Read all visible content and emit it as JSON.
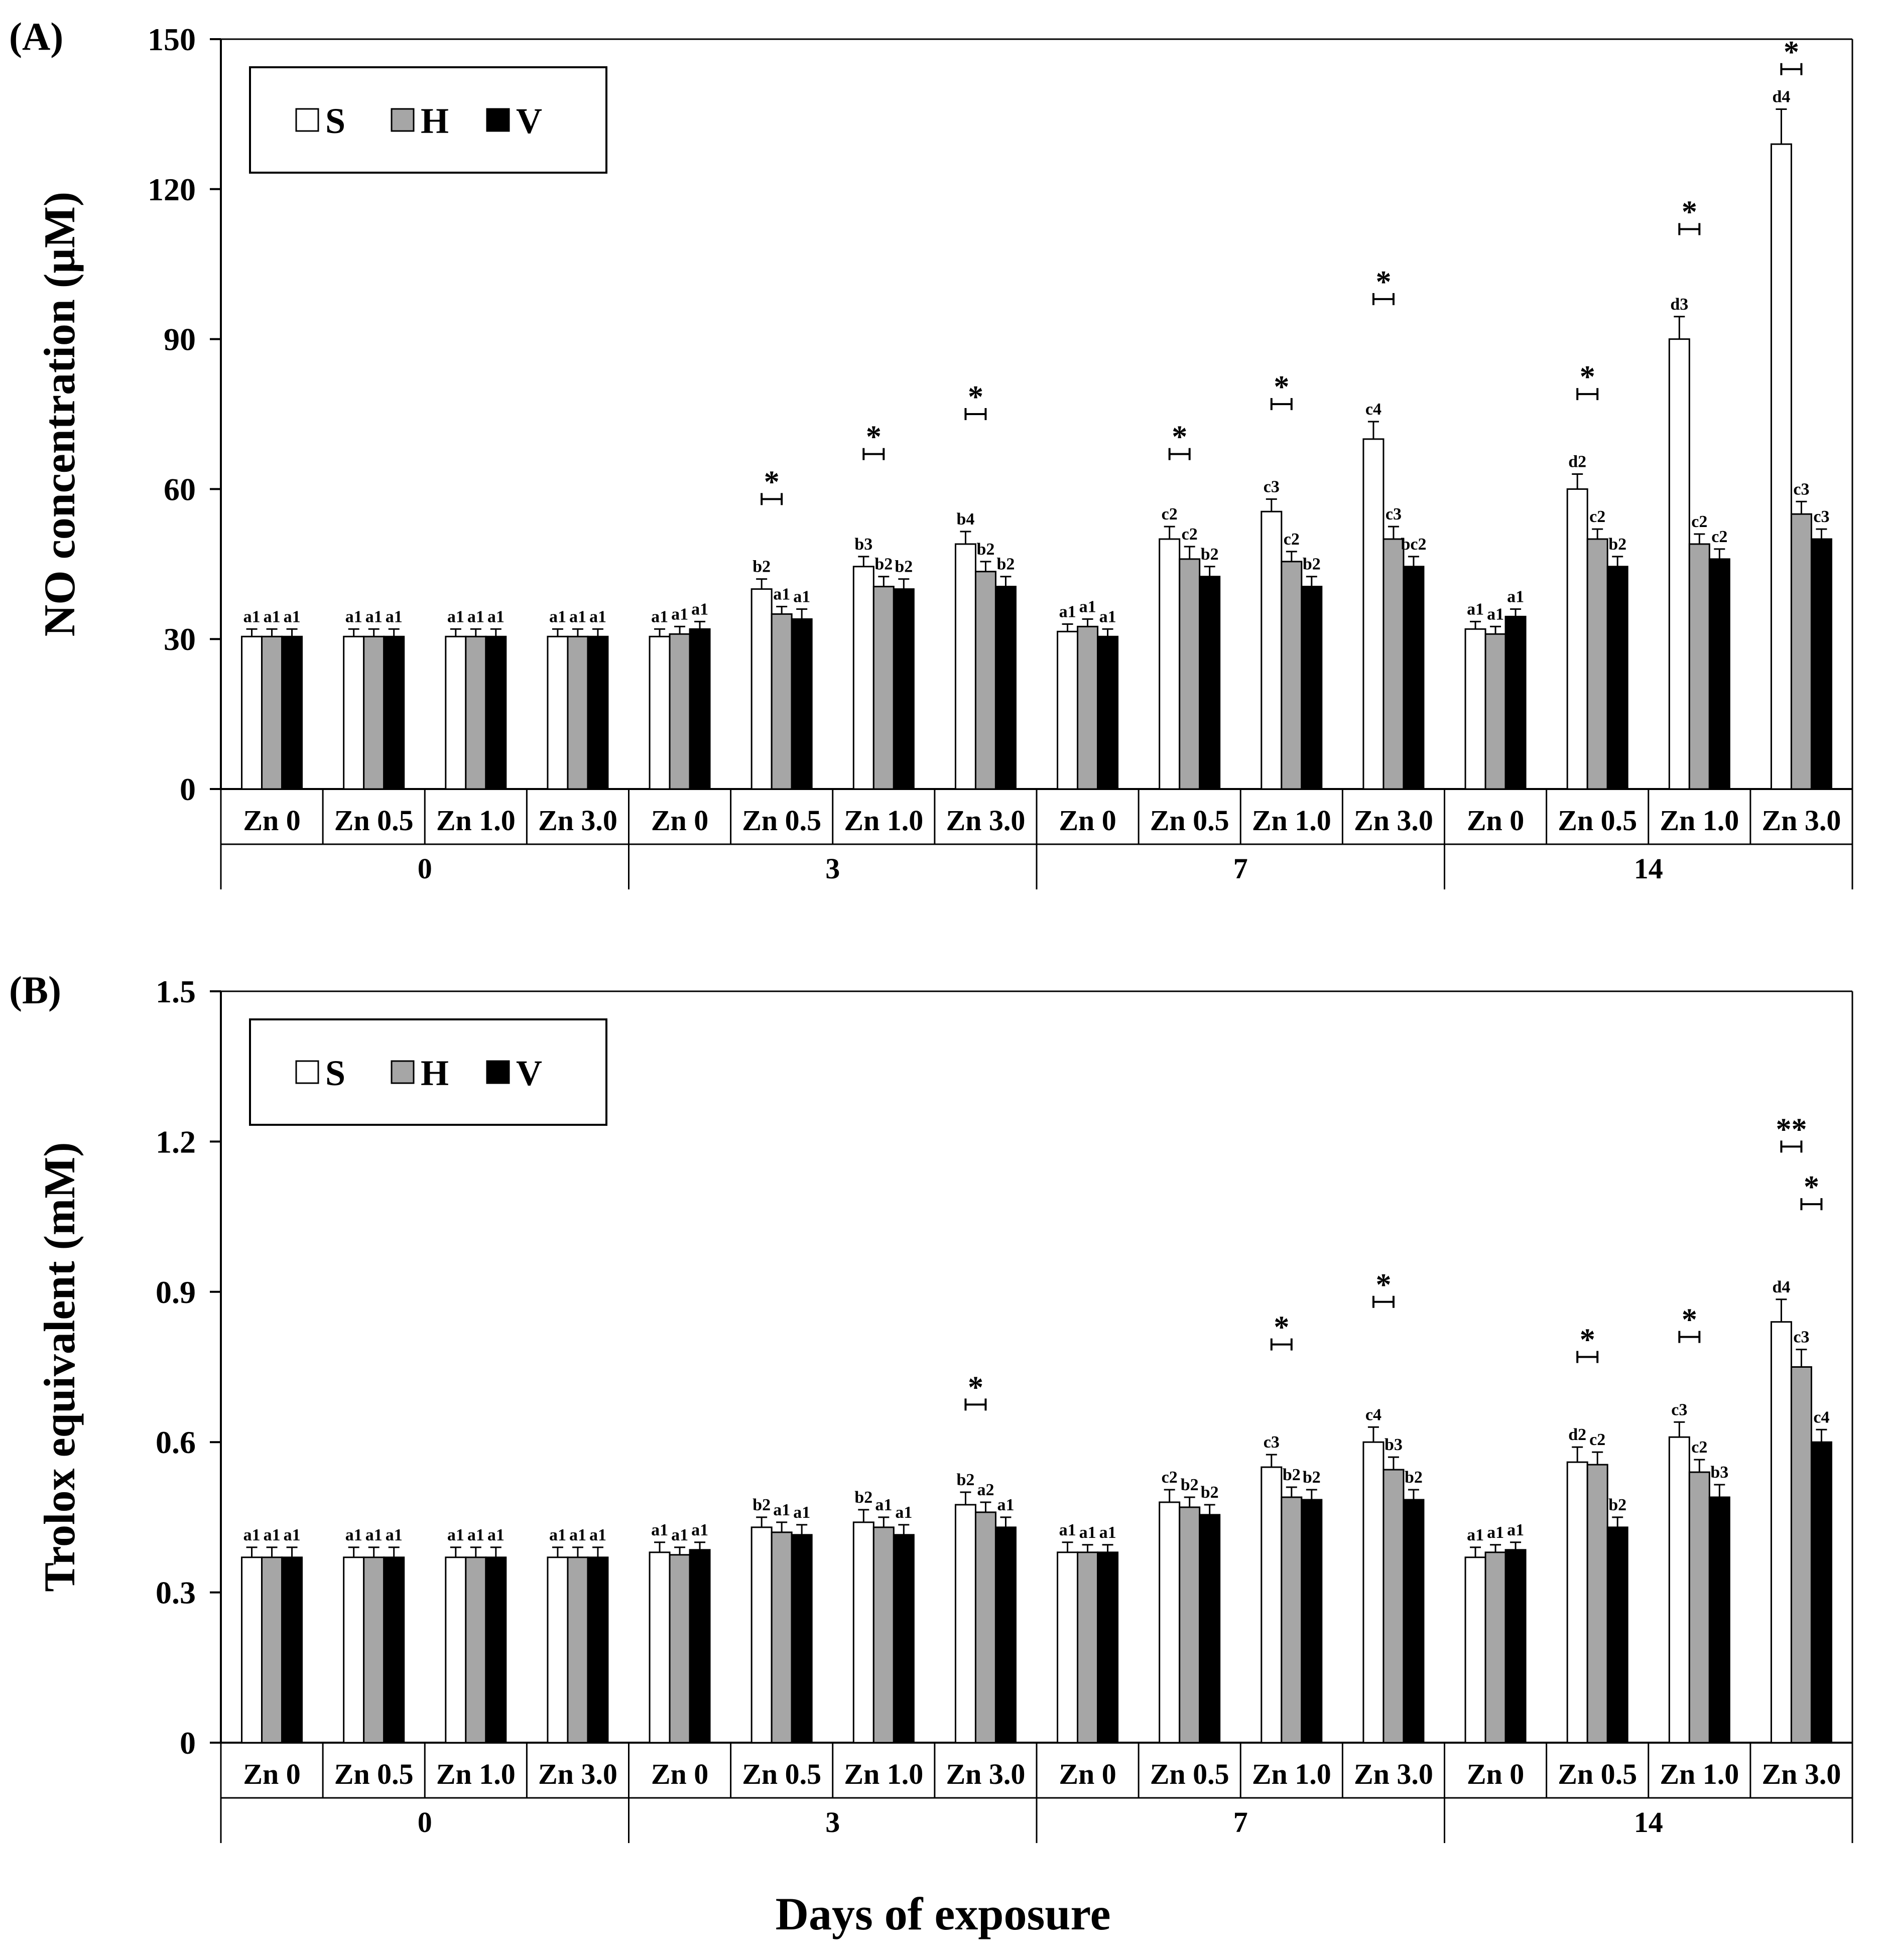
{
  "figure": {
    "x_axis_title": "Days of exposure",
    "colors": {
      "S": "#ffffff",
      "H": "#a6a6a6",
      "V": "#000000"
    }
  },
  "chart_data": [
    {
      "panel": "(A)",
      "type": "bar",
      "ylabel": "NO concentration (µM)",
      "ylim": [
        0,
        150
      ],
      "yticks": [
        "0",
        "30",
        "60",
        "90",
        "120",
        "150"
      ],
      "ytick_values": [
        0,
        30,
        60,
        90,
        120,
        150
      ],
      "legend": [
        "S",
        "H",
        "V"
      ],
      "legend_position": "top-left",
      "groups": [
        "0",
        "3",
        "7",
        "14"
      ],
      "categories": [
        "Zn 0",
        "Zn 0.5",
        "Zn 1.0",
        "Zn 3.0",
        "Zn 0",
        "Zn 0.5",
        "Zn 1.0",
        "Zn 3.0",
        "Zn 0",
        "Zn 0.5",
        "Zn 1.0",
        "Zn 3.0",
        "Zn 0",
        "Zn 0.5",
        "Zn 1.0",
        "Zn 3.0"
      ],
      "series": [
        {
          "name": "S",
          "values": [
            30.5,
            30.5,
            30.5,
            30.5,
            30.5,
            40,
            44.5,
            49,
            31.5,
            50,
            55.5,
            70,
            32,
            60,
            90,
            129
          ],
          "errors": [
            1.5,
            1.5,
            1.5,
            1.5,
            1.5,
            2,
            2,
            2.5,
            1.5,
            2.5,
            2.5,
            3.5,
            1.5,
            3,
            4.5,
            7
          ],
          "labels": [
            "a1",
            "a1",
            "a1",
            "a1",
            "a1",
            "b2",
            "b3",
            "b4",
            "a1",
            "c2",
            "c3",
            "c4",
            "a1",
            "d2",
            "d3",
            "d4"
          ]
        },
        {
          "name": "H",
          "values": [
            30.5,
            30.5,
            30.5,
            30.5,
            31,
            35,
            40.5,
            43.5,
            32.5,
            46,
            45.5,
            50,
            31,
            50,
            49,
            55
          ],
          "errors": [
            1.5,
            1.5,
            1.5,
            1.5,
            1.5,
            1.5,
            2,
            2,
            1.5,
            2.5,
            2,
            2.5,
            1.5,
            2,
            2,
            2.5
          ],
          "labels": [
            "a1",
            "a1",
            "a1",
            "a1",
            "a1",
            "a1",
            "b2",
            "b2",
            "a1",
            "c2",
            "c2",
            "c3",
            "a1",
            "c2",
            "c2",
            "c3"
          ]
        },
        {
          "name": "V",
          "values": [
            30.5,
            30.5,
            30.5,
            30.5,
            32,
            34,
            40,
            40.5,
            30.5,
            42.5,
            40.5,
            44.5,
            34.5,
            44.5,
            46,
            50
          ],
          "errors": [
            1.5,
            1.5,
            1.5,
            1.5,
            1.5,
            2,
            2,
            2,
            1.5,
            2,
            2,
            2,
            1.5,
            2,
            2,
            2
          ],
          "labels": [
            "a1",
            "a1",
            "a1",
            "a1",
            "a1",
            "a1",
            "b2",
            "b2",
            "a1",
            "b2",
            "b2",
            "bc2",
            "a1",
            "b2",
            "c2",
            "c3"
          ]
        }
      ],
      "significance": [
        {
          "category_index": 5,
          "from": "S",
          "to": "H",
          "level": 58,
          "mark": "*"
        },
        {
          "category_index": 6,
          "from": "S",
          "to": "H",
          "level": 67,
          "mark": "*"
        },
        {
          "category_index": 7,
          "from": "S",
          "to": "H",
          "level": 75,
          "mark": "*"
        },
        {
          "category_index": 9,
          "from": "S",
          "to": "H",
          "level": 67,
          "mark": "*"
        },
        {
          "category_index": 10,
          "from": "S",
          "to": "H",
          "level": 77,
          "mark": "*"
        },
        {
          "category_index": 11,
          "from": "S",
          "to": "H",
          "level": 98,
          "mark": "*"
        },
        {
          "category_index": 13,
          "from": "S",
          "to": "H",
          "level": 79,
          "mark": "*"
        },
        {
          "category_index": 14,
          "from": "S",
          "to": "H",
          "level": 112,
          "mark": "*"
        },
        {
          "category_index": 15,
          "from": "S",
          "to": "H",
          "level": 144,
          "mark": "*"
        }
      ]
    },
    {
      "panel": "(B)",
      "type": "bar",
      "ylabel": "Trolox equivalent (mM)",
      "ylim": [
        0,
        1.5
      ],
      "yticks": [
        "0",
        "0.3",
        "0.6",
        "0.9",
        "1.2",
        "1.5"
      ],
      "ytick_values": [
        0,
        0.3,
        0.6,
        0.9,
        1.2,
        1.5
      ],
      "legend": [
        "S",
        "H",
        "V"
      ],
      "legend_position": "top-left",
      "groups": [
        "0",
        "3",
        "7",
        "14"
      ],
      "categories": [
        "Zn 0",
        "Zn 0.5",
        "Zn 1.0",
        "Zn 3.0",
        "Zn 0",
        "Zn 0.5",
        "Zn 1.0",
        "Zn 3.0",
        "Zn 0",
        "Zn 0.5",
        "Zn 1.0",
        "Zn 3.0",
        "Zn 0",
        "Zn 0.5",
        "Zn 1.0",
        "Zn 3.0"
      ],
      "series": [
        {
          "name": "S",
          "values": [
            0.37,
            0.37,
            0.37,
            0.37,
            0.38,
            0.43,
            0.44,
            0.475,
            0.38,
            0.48,
            0.55,
            0.6,
            0.37,
            0.56,
            0.61,
            0.84
          ],
          "errors": [
            0.02,
            0.02,
            0.02,
            0.02,
            0.02,
            0.02,
            0.025,
            0.025,
            0.02,
            0.025,
            0.025,
            0.03,
            0.02,
            0.03,
            0.03,
            0.045
          ],
          "labels": [
            "a1",
            "a1",
            "a1",
            "a1",
            "a1",
            "b2",
            "b2",
            "b2",
            "a1",
            "c2",
            "c3",
            "c4",
            "a1",
            "d2",
            "c3",
            "d4"
          ]
        },
        {
          "name": "H",
          "values": [
            0.37,
            0.37,
            0.37,
            0.37,
            0.375,
            0.42,
            0.43,
            0.46,
            0.38,
            0.47,
            0.49,
            0.545,
            0.38,
            0.555,
            0.54,
            0.75
          ],
          "errors": [
            0.02,
            0.02,
            0.02,
            0.02,
            0.015,
            0.02,
            0.02,
            0.02,
            0.015,
            0.02,
            0.02,
            0.025,
            0.015,
            0.025,
            0.025,
            0.035
          ],
          "labels": [
            "a1",
            "a1",
            "a1",
            "a1",
            "a1",
            "a1",
            "a1",
            "a2",
            "a1",
            "b2",
            "b2",
            "b3",
            "a1",
            "c2",
            "c2",
            "c3"
          ]
        },
        {
          "name": "V",
          "values": [
            0.37,
            0.37,
            0.37,
            0.37,
            0.385,
            0.415,
            0.415,
            0.43,
            0.38,
            0.455,
            0.485,
            0.485,
            0.385,
            0.43,
            0.49,
            0.6
          ],
          "errors": [
            0.02,
            0.02,
            0.02,
            0.02,
            0.015,
            0.02,
            0.02,
            0.02,
            0.015,
            0.02,
            0.02,
            0.02,
            0.015,
            0.02,
            0.025,
            0.025
          ],
          "labels": [
            "a1",
            "a1",
            "a1",
            "a1",
            "a1",
            "a1",
            "a1",
            "a1",
            "a1",
            "b2",
            "b2",
            "b2",
            "a1",
            "b2",
            "b3",
            "c4"
          ]
        }
      ],
      "significance": [
        {
          "category_index": 7,
          "from": "S",
          "to": "H",
          "level": 0.675,
          "mark": "*"
        },
        {
          "category_index": 10,
          "from": "S",
          "to": "H",
          "level": 0.795,
          "mark": "*"
        },
        {
          "category_index": 11,
          "from": "S",
          "to": "H",
          "level": 0.88,
          "mark": "*"
        },
        {
          "category_index": 13,
          "from": "S",
          "to": "H",
          "level": 0.77,
          "mark": "*"
        },
        {
          "category_index": 14,
          "from": "S",
          "to": "H",
          "level": 0.81,
          "mark": "*"
        },
        {
          "category_index": 15,
          "from": "S",
          "to": "H",
          "level": 1.19,
          "mark": "**"
        },
        {
          "category_index": 15,
          "from": "H",
          "to": "V",
          "level": 1.075,
          "mark": "*"
        }
      ]
    }
  ]
}
